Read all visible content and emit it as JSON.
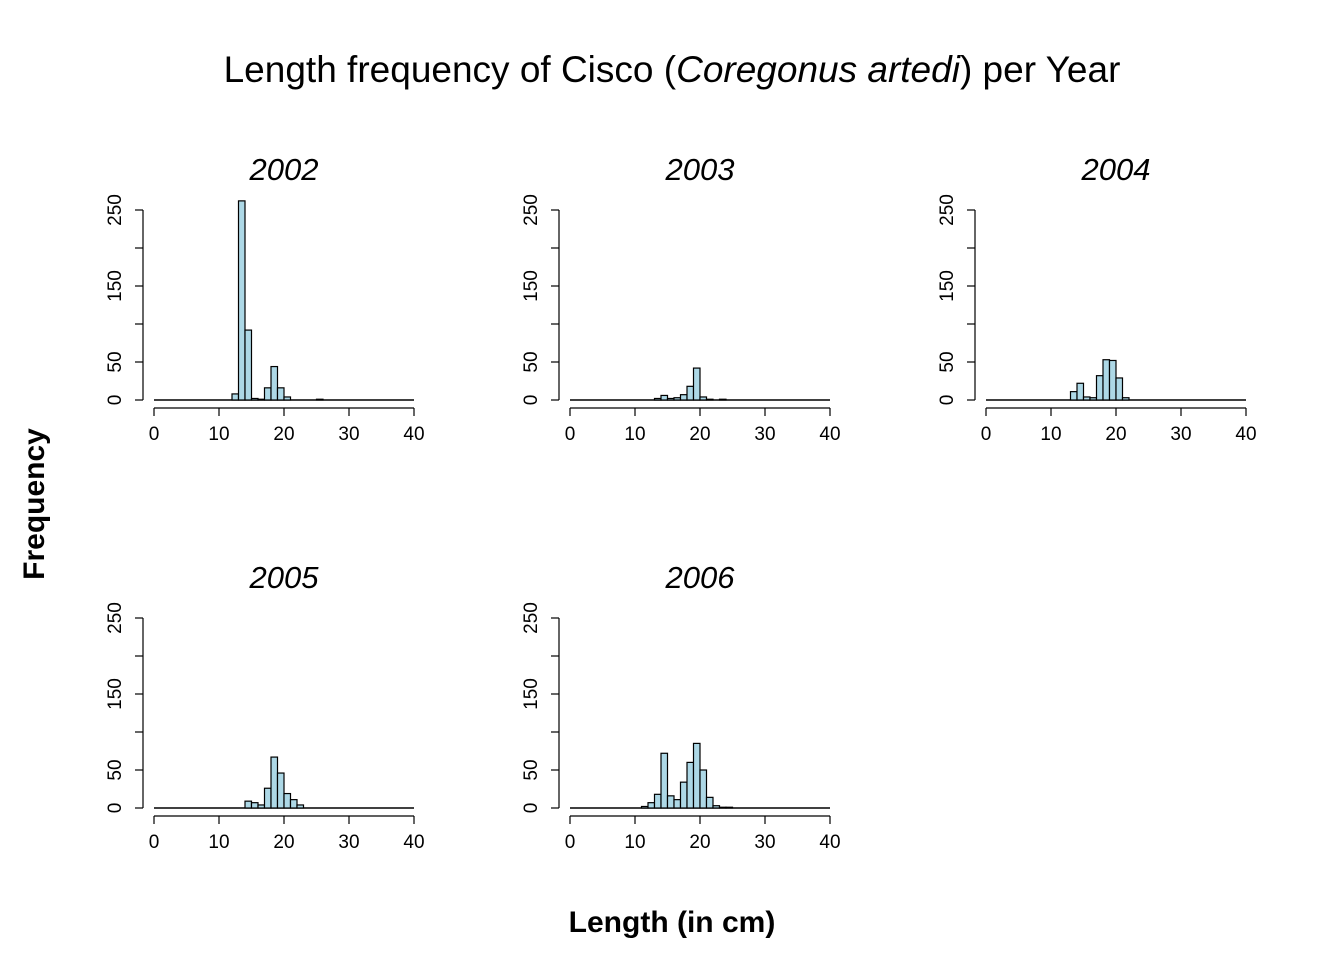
{
  "chart_data": {
    "type": "bar",
    "title": {
      "prefix": "Length frequency of Cisco (",
      "italic": "Coregonus artedi",
      "suffix": ") per Year"
    },
    "xlabel": "Length (in cm)",
    "ylabel": "Frequency",
    "xlim": [
      0,
      40
    ],
    "ylim": [
      0,
      250
    ],
    "x_ticks": [
      0,
      10,
      20,
      30,
      40
    ],
    "y_ticks": [
      0,
      50,
      150,
      250
    ],
    "y_minor_ticks": [
      100,
      200
    ],
    "bin_width": 1,
    "bar_color": "#ADD8E6",
    "outline_color": "#000000",
    "panels": [
      {
        "year": "2002",
        "bins": [
          {
            "x0": 12,
            "count": 8
          },
          {
            "x0": 13,
            "count": 262
          },
          {
            "x0": 14,
            "count": 92
          },
          {
            "x0": 15,
            "count": 2
          },
          {
            "x0": 16,
            "count": 1
          },
          {
            "x0": 17,
            "count": 16
          },
          {
            "x0": 18,
            "count": 44
          },
          {
            "x0": 19,
            "count": 16
          },
          {
            "x0": 20,
            "count": 4
          },
          {
            "x0": 25,
            "count": 1
          }
        ]
      },
      {
        "year": "2003",
        "bins": [
          {
            "x0": 13,
            "count": 2
          },
          {
            "x0": 14,
            "count": 6
          },
          {
            "x0": 15,
            "count": 2
          },
          {
            "x0": 16,
            "count": 3
          },
          {
            "x0": 17,
            "count": 7
          },
          {
            "x0": 18,
            "count": 18
          },
          {
            "x0": 19,
            "count": 42
          },
          {
            "x0": 20,
            "count": 4
          },
          {
            "x0": 21,
            "count": 1
          },
          {
            "x0": 23,
            "count": 1
          }
        ]
      },
      {
        "year": "2004",
        "bins": [
          {
            "x0": 13,
            "count": 11
          },
          {
            "x0": 14,
            "count": 22
          },
          {
            "x0": 15,
            "count": 4
          },
          {
            "x0": 16,
            "count": 3
          },
          {
            "x0": 17,
            "count": 32
          },
          {
            "x0": 18,
            "count": 53
          },
          {
            "x0": 19,
            "count": 52
          },
          {
            "x0": 20,
            "count": 29
          },
          {
            "x0": 21,
            "count": 3
          }
        ]
      },
      {
        "year": "2005",
        "bins": [
          {
            "x0": 14,
            "count": 9
          },
          {
            "x0": 15,
            "count": 7
          },
          {
            "x0": 16,
            "count": 4
          },
          {
            "x0": 17,
            "count": 26
          },
          {
            "x0": 18,
            "count": 67
          },
          {
            "x0": 19,
            "count": 46
          },
          {
            "x0": 20,
            "count": 19
          },
          {
            "x0": 21,
            "count": 11
          },
          {
            "x0": 22,
            "count": 4
          }
        ]
      },
      {
        "year": "2006",
        "bins": [
          {
            "x0": 11,
            "count": 2
          },
          {
            "x0": 12,
            "count": 7
          },
          {
            "x0": 13,
            "count": 18
          },
          {
            "x0": 14,
            "count": 72
          },
          {
            "x0": 15,
            "count": 16
          },
          {
            "x0": 16,
            "count": 11
          },
          {
            "x0": 17,
            "count": 34
          },
          {
            "x0": 18,
            "count": 60
          },
          {
            "x0": 19,
            "count": 85
          },
          {
            "x0": 20,
            "count": 50
          },
          {
            "x0": 21,
            "count": 14
          },
          {
            "x0": 22,
            "count": 3
          },
          {
            "x0": 23,
            "count": 1
          },
          {
            "x0": 24,
            "count": 1
          }
        ]
      }
    ]
  }
}
